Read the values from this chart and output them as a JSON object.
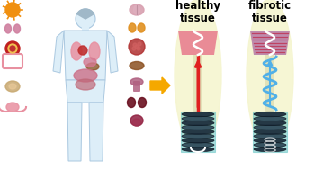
{
  "bg_color": "#ffffff",
  "label_healthy": "healthy\ntissue",
  "label_fibrotic": "fibrotic\ntissue",
  "label_fontsize": 8.5,
  "label_fontweight": "bold",
  "arrow_color": "#f5a800",
  "body_color": "#ddeef8",
  "body_outline": "#aac8e0",
  "organ_pink": "#e890a0",
  "organ_red": "#c03030",
  "organ_dark": "#7a1828",
  "tissue_color": "#e88090",
  "meta_teal": "#60c0c0",
  "meta_dark": "#1a2a3a",
  "wave_white": "#ffffff",
  "red_beam": "#e02020",
  "blue_spring": "#50b0e8",
  "bg_glow": "#f5f5d0",
  "coil_teal": "#70c8c8",
  "fibrotic_blue": "#7090d8",
  "sun_color": "#f09010",
  "lung_icon": "#d080a0",
  "blood_outer": "#c02020",
  "blood_inner": "#f0c050",
  "liver_brown": "#8b5020",
  "thyroid_orange": "#e09020",
  "brain_pink": "#d8a0b0",
  "kidney_red": "#b03030",
  "mush_mauve": "#b06080",
  "dark_purple": "#6a1020",
  "bladder_dark": "#902040",
  "joint_tan": "#c8a870"
}
